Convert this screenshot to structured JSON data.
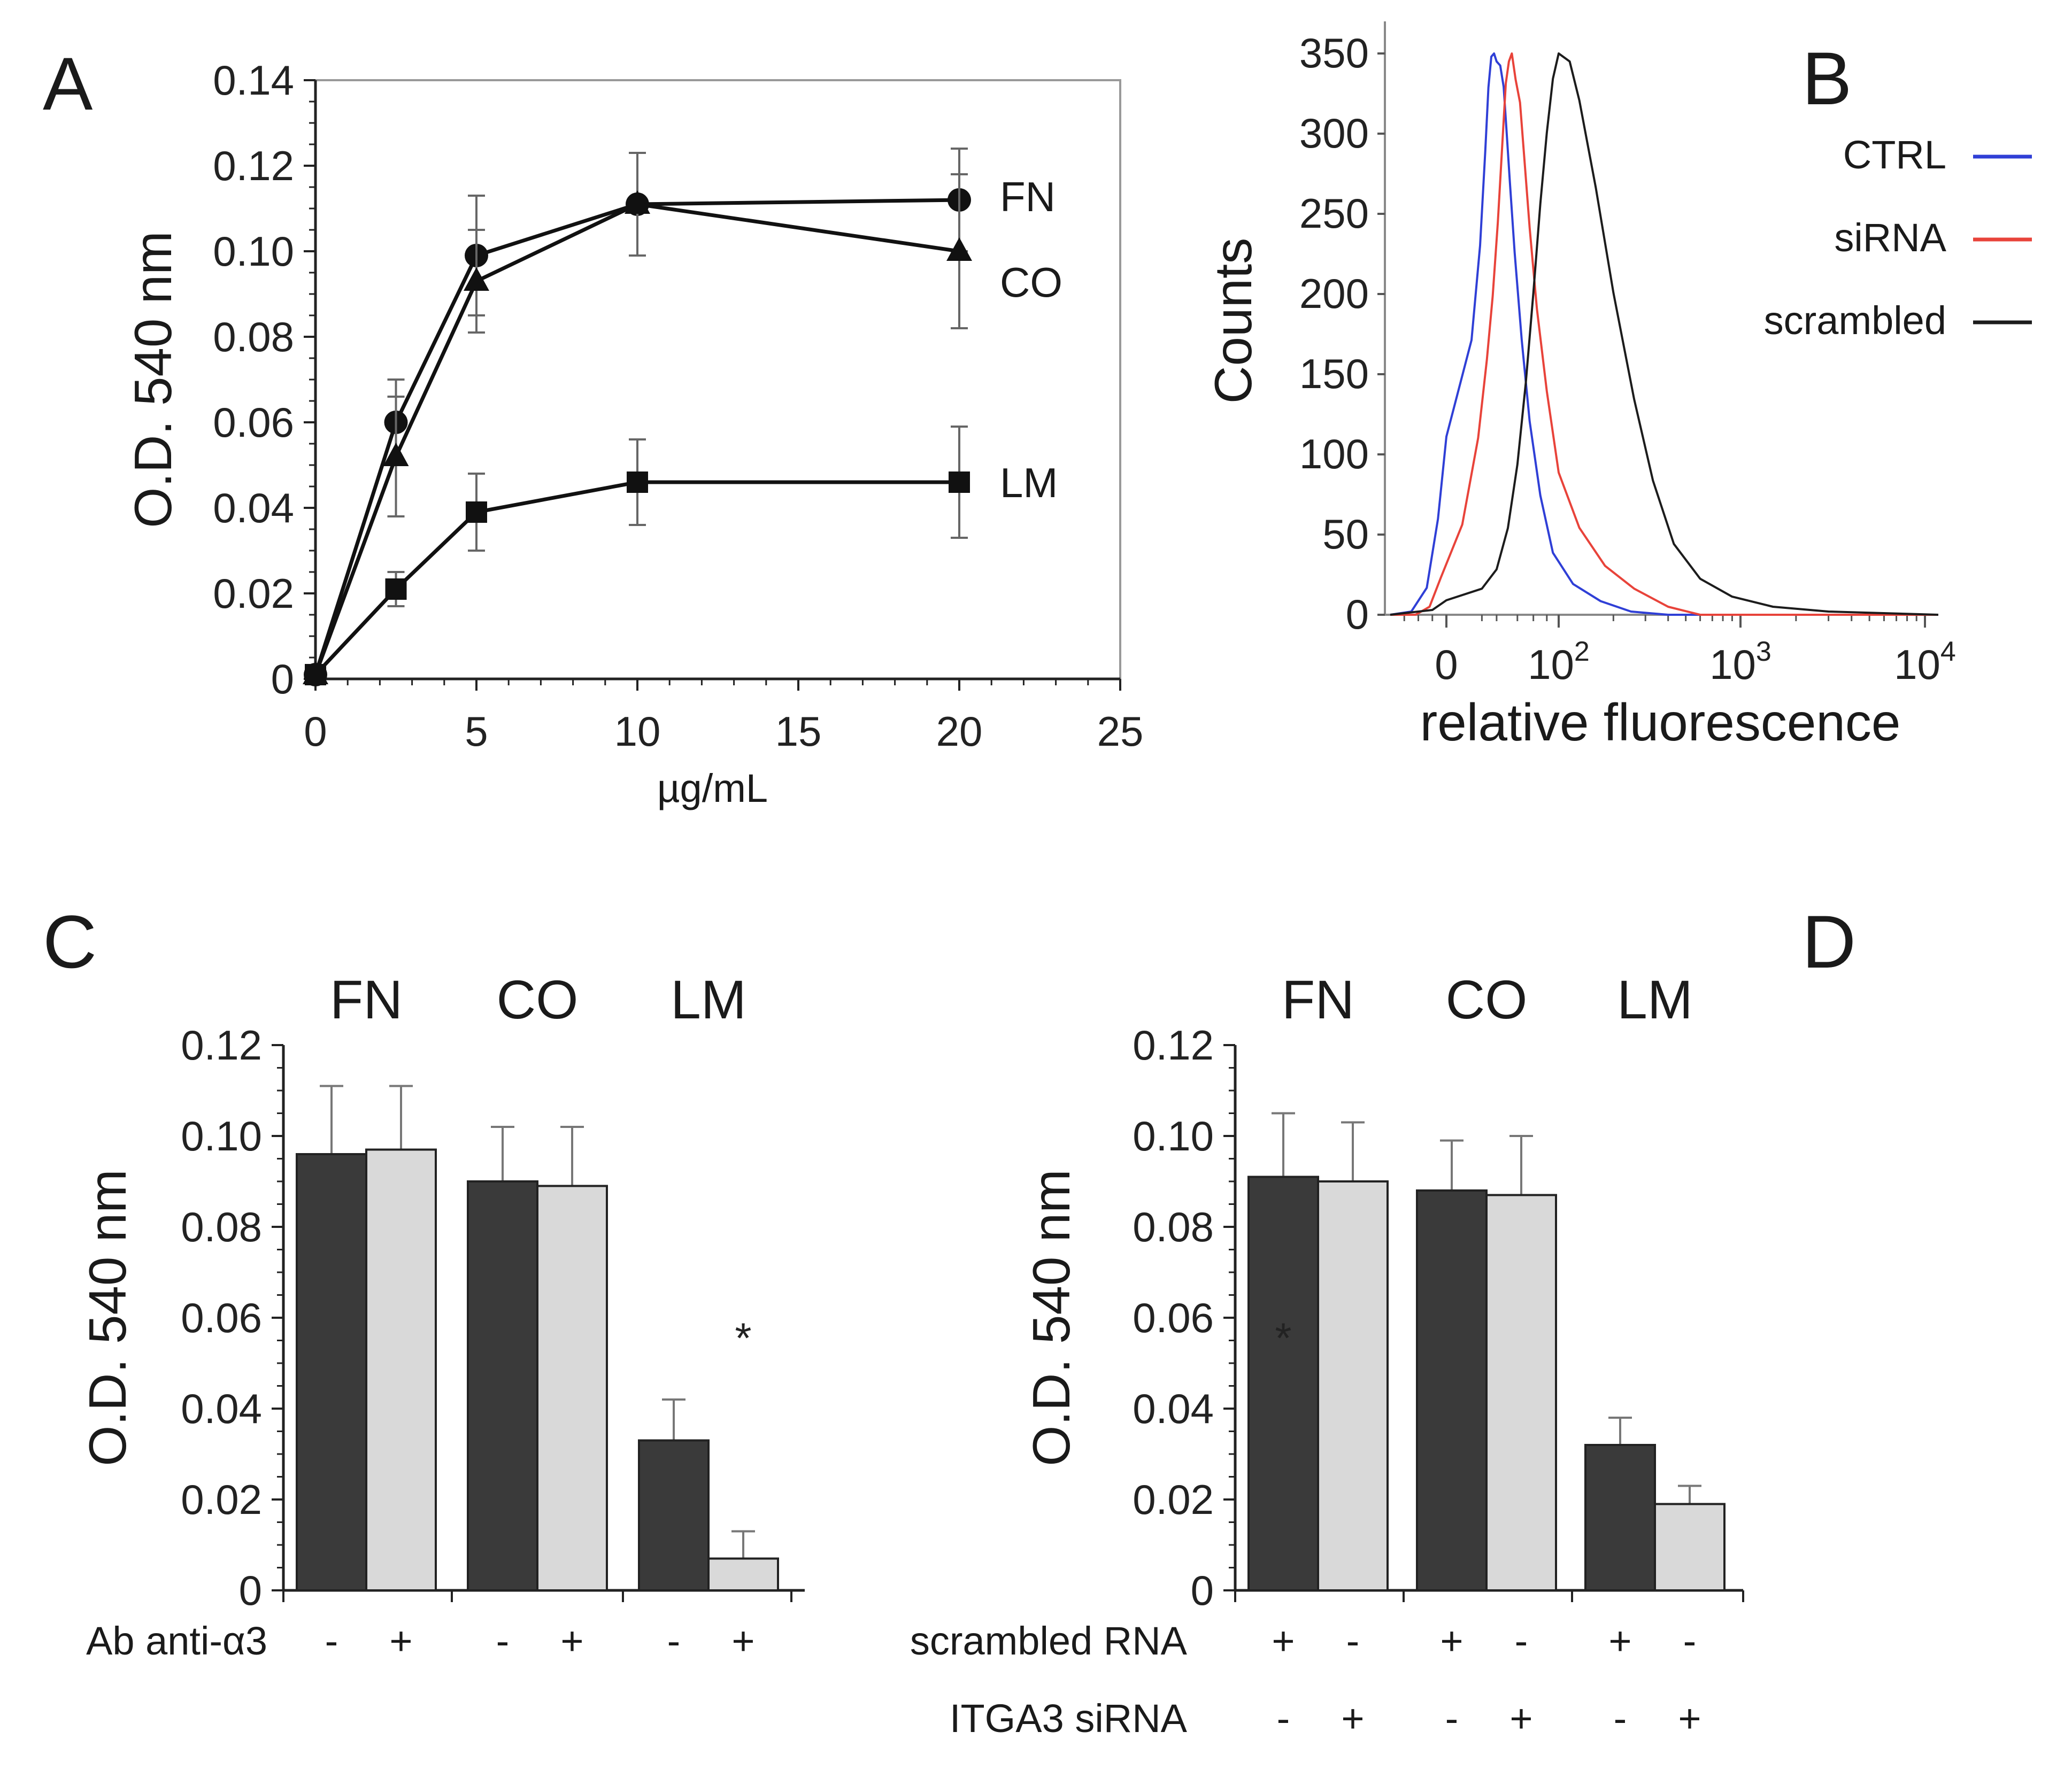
{
  "chart_data": [
    {
      "id": "A",
      "type": "line",
      "panel_label": "A",
      "xlabel": "µg/mL",
      "ylabel": "O.D. 540 nm",
      "xlim": [
        0,
        25
      ],
      "ylim": [
        0,
        0.14
      ],
      "xticks": [
        "0",
        "5",
        "10",
        "15",
        "20",
        "25"
      ],
      "yticks": [
        "0",
        "0.02",
        "0.04",
        "0.06",
        "0.08",
        "0.10",
        "0.12",
        "0.14"
      ],
      "x": [
        0,
        2.5,
        5,
        10,
        20
      ],
      "series": [
        {
          "name": "FN",
          "marker": "circle",
          "values": [
            0.001,
            0.06,
            0.099,
            0.111,
            0.112
          ],
          "errors": [
            0,
            0.01,
            0.014,
            0.012,
            0.012
          ]
        },
        {
          "name": "CO",
          "marker": "triangle",
          "values": [
            0.001,
            0.052,
            0.093,
            0.111,
            0.1
          ],
          "errors": [
            0,
            0.014,
            0.012,
            0.012,
            0.018
          ]
        },
        {
          "name": "LM",
          "marker": "square",
          "values": [
            0.001,
            0.021,
            0.039,
            0.046,
            0.046
          ],
          "errors": [
            0,
            0.004,
            0.009,
            0.01,
            0.013
          ]
        }
      ]
    },
    {
      "id": "B",
      "type": "line",
      "panel_label": "B",
      "xlabel": "relative fluorescence",
      "ylabel": "Counts",
      "ylim": [
        0,
        350
      ],
      "yticks": [
        "0",
        "50",
        "100",
        "150",
        "200",
        "250",
        "300",
        "350"
      ],
      "xticks": [
        {
          "base": "0",
          "exp": ""
        },
        {
          "base": "10",
          "exp": "2"
        },
        {
          "base": "10",
          "exp": "3"
        },
        {
          "base": "10",
          "exp": "4"
        }
      ],
      "xticks_value": [
        0,
        100,
        1000,
        10000
      ],
      "xlim": [
        -40,
        12000
      ],
      "legend_position": "right",
      "series": [
        {
          "name": "CTRL",
          "color": "#2f3fd6",
          "x": [
            -40,
            -25,
            -14,
            -6,
            0,
            5,
            9,
            12,
            14,
            16,
            18,
            20,
            23,
            26,
            29,
            32,
            37,
            45,
            55,
            70,
            90,
            120,
            170,
            250,
            400,
            12000
          ],
          "values": [
            0,
            2,
            18,
            60,
            110,
            170,
            230,
            290,
            330,
            348,
            350,
            345,
            342,
            330,
            300,
            270,
            225,
            170,
            120,
            75,
            40,
            20,
            8,
            2,
            0,
            0
          ]
        },
        {
          "name": "siRNA",
          "color": "#e8433a",
          "x": [
            -40,
            -22,
            -12,
            -4,
            2,
            8,
            13,
            17,
            21,
            25,
            28,
            31,
            34,
            38,
            43,
            48,
            55,
            65,
            80,
            100,
            130,
            180,
            260,
            400,
            600,
            12000
          ],
          "values": [
            0,
            0,
            5,
            22,
            55,
            110,
            160,
            200,
            245,
            295,
            330,
            345,
            350,
            335,
            320,
            285,
            240,
            190,
            140,
            90,
            55,
            30,
            15,
            5,
            0,
            0
          ]
        },
        {
          "name": "scrambled",
          "color": "#1c1c1c",
          "x": [
            -40,
            -10,
            0,
            10,
            20,
            30,
            40,
            50,
            60,
            70,
            80,
            90,
            100,
            115,
            130,
            160,
            200,
            260,
            330,
            430,
            600,
            900,
            1500,
            3000,
            12000
          ],
          "values": [
            0,
            3,
            8,
            15,
            28,
            55,
            95,
            145,
            200,
            255,
            300,
            335,
            350,
            345,
            320,
            265,
            200,
            135,
            85,
            45,
            22,
            10,
            5,
            2,
            0
          ]
        }
      ]
    },
    {
      "id": "C",
      "type": "bar",
      "panel_label": "C",
      "ylabel": "O.D. 540 nm",
      "ylim": [
        0,
        0.12
      ],
      "yticks": [
        "0",
        "0.02",
        "0.04",
        "0.06",
        "0.08",
        "0.10",
        "0.12"
      ],
      "groups": [
        "FN",
        "CO",
        "LM"
      ],
      "row_labels": [
        "Ab anti-α3"
      ],
      "condition_rows": [
        [
          "-",
          "+",
          "-",
          "+",
          "-",
          "+"
        ]
      ],
      "bars": [
        {
          "group": "FN",
          "fill": "dark",
          "value": 0.096,
          "error": 0.015
        },
        {
          "group": "FN",
          "fill": "light",
          "value": 0.097,
          "error": 0.014
        },
        {
          "group": "CO",
          "fill": "dark",
          "value": 0.09,
          "error": 0.012
        },
        {
          "group": "CO",
          "fill": "light",
          "value": 0.089,
          "error": 0.013
        },
        {
          "group": "LM",
          "fill": "dark",
          "value": 0.033,
          "error": 0.009
        },
        {
          "group": "LM",
          "fill": "light",
          "value": 0.007,
          "error": 0.006
        }
      ],
      "annotations": [
        {
          "text": "*",
          "bar_index": 5,
          "at_value": 0.057
        }
      ]
    },
    {
      "id": "D",
      "type": "bar",
      "panel_label": "D",
      "ylabel": "O.D. 540 nm",
      "ylim": [
        0,
        0.12
      ],
      "yticks": [
        "0",
        "0.02",
        "0.04",
        "0.06",
        "0.08",
        "0.10",
        "0.12"
      ],
      "groups": [
        "FN",
        "CO",
        "LM"
      ],
      "row_labels": [
        "scrambled RNA",
        "ITGA3 siRNA"
      ],
      "condition_rows": [
        [
          "+",
          "-",
          "+",
          "-",
          "+",
          "-"
        ],
        [
          "-",
          "+",
          "-",
          "+",
          "-",
          "+"
        ]
      ],
      "bars": [
        {
          "group": "FN",
          "fill": "dark",
          "value": 0.091,
          "error": 0.014
        },
        {
          "group": "FN",
          "fill": "light",
          "value": 0.09,
          "error": 0.013
        },
        {
          "group": "CO",
          "fill": "dark",
          "value": 0.088,
          "error": 0.011
        },
        {
          "group": "CO",
          "fill": "light",
          "value": 0.087,
          "error": 0.013
        },
        {
          "group": "LM",
          "fill": "dark",
          "value": 0.032,
          "error": 0.006
        },
        {
          "group": "LM",
          "fill": "light",
          "value": 0.019,
          "error": 0.004
        }
      ],
      "annotations": [
        {
          "text": "*",
          "bar_index": 0,
          "at_value": 0.057
        }
      ]
    }
  ],
  "colors": {
    "dark_bar": "#3a3a3a",
    "light_bar": "#d9d9d9",
    "line": "#111111",
    "axis": "#222222"
  }
}
